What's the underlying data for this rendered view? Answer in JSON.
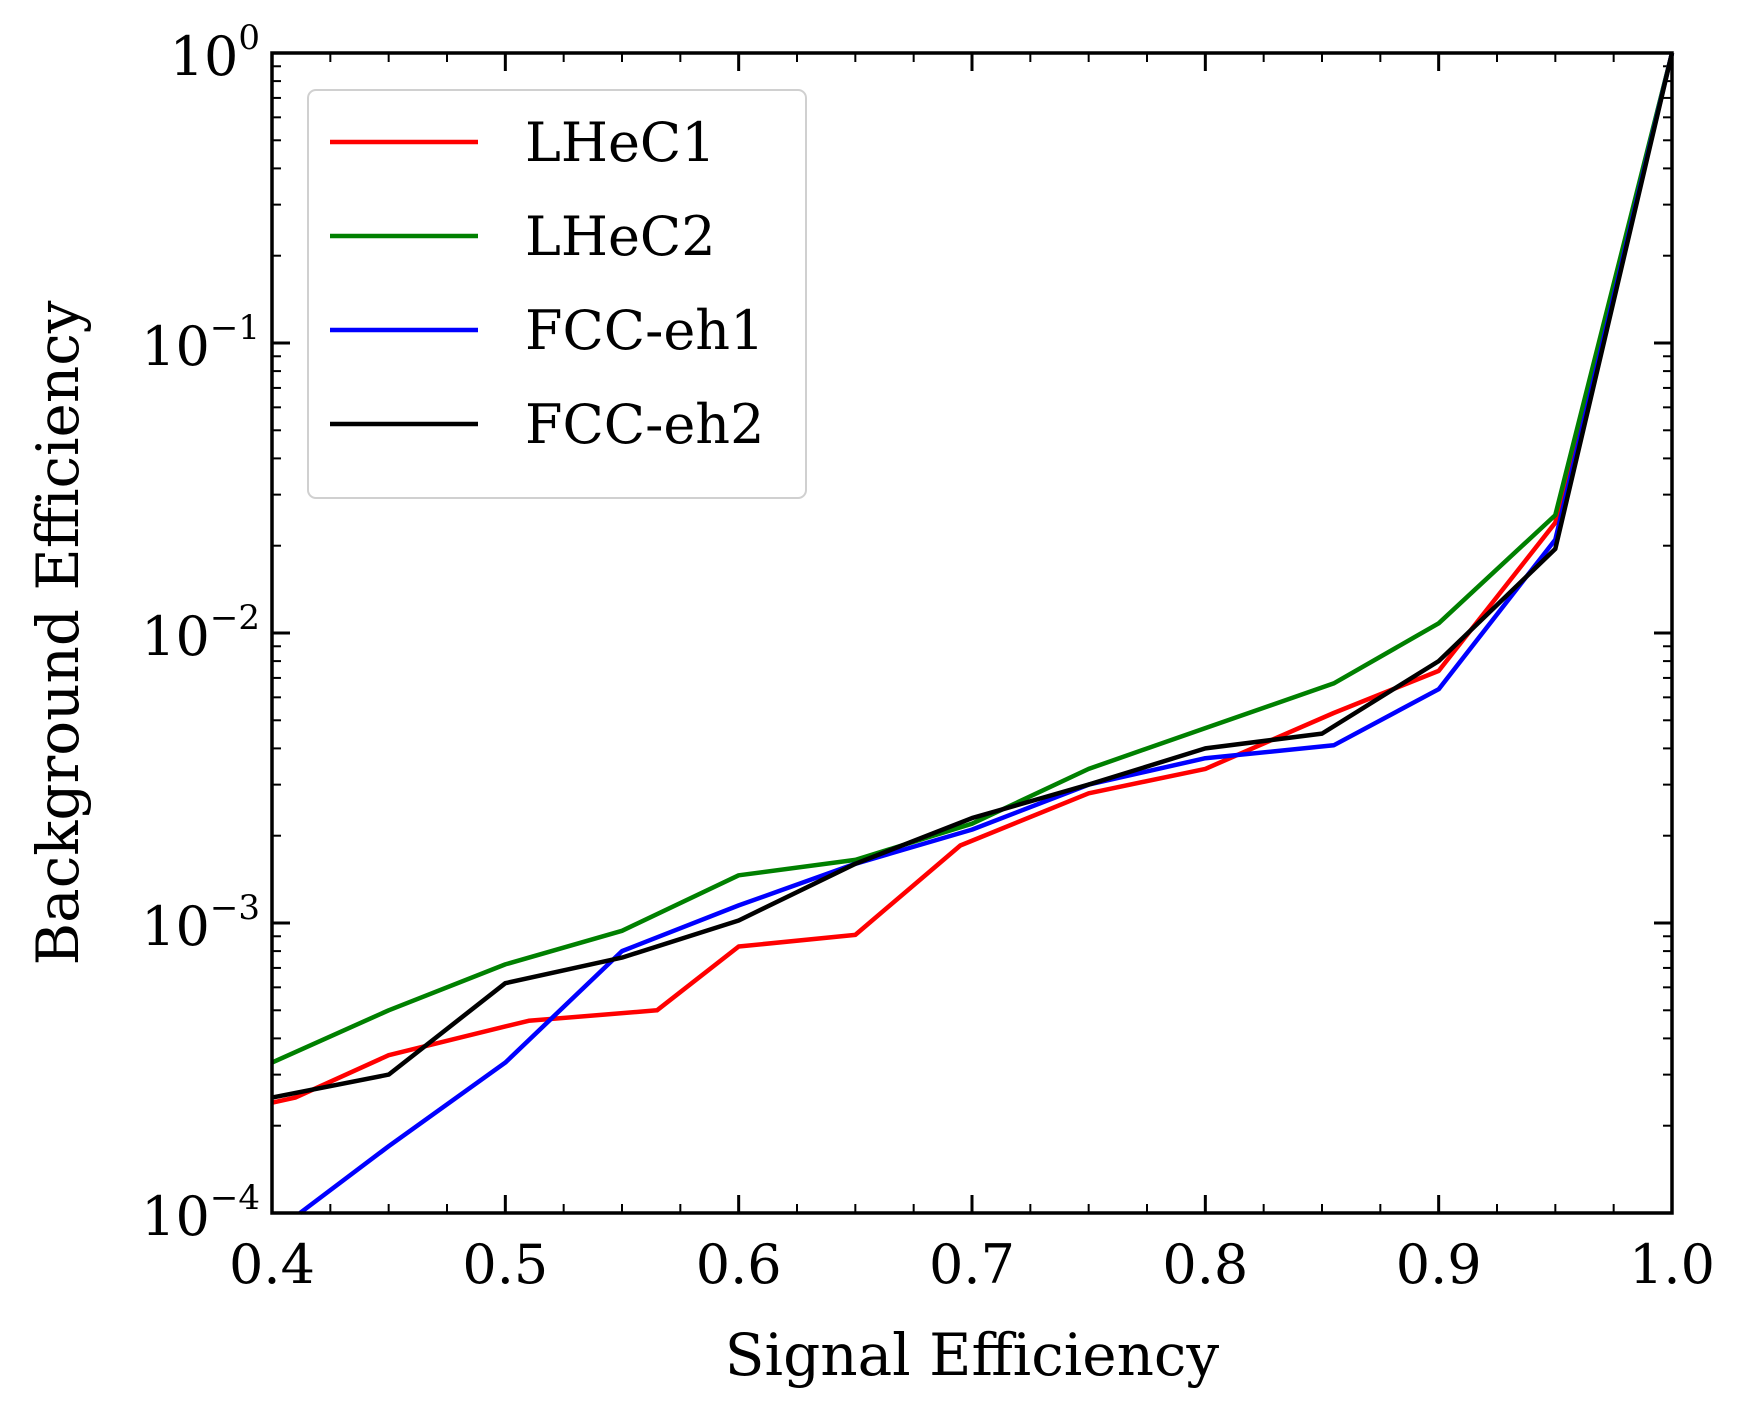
{
  "chart_data": {
    "type": "line",
    "xlabel": "Signal Efficiency",
    "ylabel": "Background Efficiency",
    "xlim": [
      0.4,
      1.0
    ],
    "ylim": [
      0.0001,
      1
    ],
    "yscale": "log",
    "grid": false,
    "legend_position": "top-left",
    "x_ticks": [
      {
        "value": 0.4,
        "label": "0.4"
      },
      {
        "value": 0.5,
        "label": "0.5"
      },
      {
        "value": 0.6,
        "label": "0.6"
      },
      {
        "value": 0.7,
        "label": "0.7"
      },
      {
        "value": 0.8,
        "label": "0.8"
      },
      {
        "value": 0.9,
        "label": "0.9"
      },
      {
        "value": 1.0,
        "label": "1.0"
      }
    ],
    "y_ticks": [
      {
        "value": 1,
        "base": "10",
        "exp": "0"
      },
      {
        "value": 0.1,
        "base": "10",
        "exp": "−1"
      },
      {
        "value": 0.01,
        "base": "10",
        "exp": "−2"
      },
      {
        "value": 0.001,
        "base": "10",
        "exp": "−3"
      },
      {
        "value": 0.0001,
        "base": "10",
        "exp": "−4"
      }
    ],
    "series": [
      {
        "name": "LHeC1",
        "color": "#ff0000",
        "points": [
          [
            0.4,
            0.00024
          ],
          [
            0.41,
            0.00025
          ],
          [
            0.45,
            0.00035
          ],
          [
            0.5,
            0.00044
          ],
          [
            0.51,
            0.00046
          ],
          [
            0.565,
            0.0005
          ],
          [
            0.6,
            0.00083
          ],
          [
            0.65,
            0.00091
          ],
          [
            0.695,
            0.00185
          ],
          [
            0.75,
            0.0028
          ],
          [
            0.8,
            0.0034
          ],
          [
            0.855,
            0.0053
          ],
          [
            0.9,
            0.0074
          ],
          [
            0.95,
            0.024
          ],
          [
            1.0,
            1.0
          ]
        ]
      },
      {
        "name": "LHeC2",
        "color": "#008000",
        "points": [
          [
            0.4,
            0.00033
          ],
          [
            0.45,
            0.0005
          ],
          [
            0.5,
            0.00072
          ],
          [
            0.55,
            0.00094
          ],
          [
            0.6,
            0.00146
          ],
          [
            0.65,
            0.00165
          ],
          [
            0.7,
            0.0022
          ],
          [
            0.75,
            0.0034
          ],
          [
            0.8,
            0.0047
          ],
          [
            0.855,
            0.0067
          ],
          [
            0.9,
            0.0108
          ],
          [
            0.95,
            0.0255
          ],
          [
            1.0,
            1.0
          ]
        ]
      },
      {
        "name": "FCC-eh1",
        "color": "#0000ff",
        "points": [
          [
            0.412,
            0.0001
          ],
          [
            0.45,
            0.00017
          ],
          [
            0.5,
            0.00033
          ],
          [
            0.55,
            0.0008
          ],
          [
            0.6,
            0.00115
          ],
          [
            0.65,
            0.0016
          ],
          [
            0.7,
            0.0021
          ],
          [
            0.75,
            0.003
          ],
          [
            0.8,
            0.0037
          ],
          [
            0.855,
            0.0041
          ],
          [
            0.9,
            0.0064
          ],
          [
            0.95,
            0.021
          ],
          [
            1.0,
            1.0
          ]
        ]
      },
      {
        "name": "FCC-eh2",
        "color": "#000000",
        "points": [
          [
            0.4,
            0.00025
          ],
          [
            0.45,
            0.0003
          ],
          [
            0.5,
            0.00062
          ],
          [
            0.55,
            0.00076
          ],
          [
            0.6,
            0.00102
          ],
          [
            0.65,
            0.0016
          ],
          [
            0.7,
            0.0023
          ],
          [
            0.75,
            0.003
          ],
          [
            0.8,
            0.004
          ],
          [
            0.85,
            0.0045
          ],
          [
            0.9,
            0.008
          ],
          [
            0.95,
            0.0195
          ],
          [
            1.0,
            1.0
          ]
        ]
      }
    ]
  }
}
